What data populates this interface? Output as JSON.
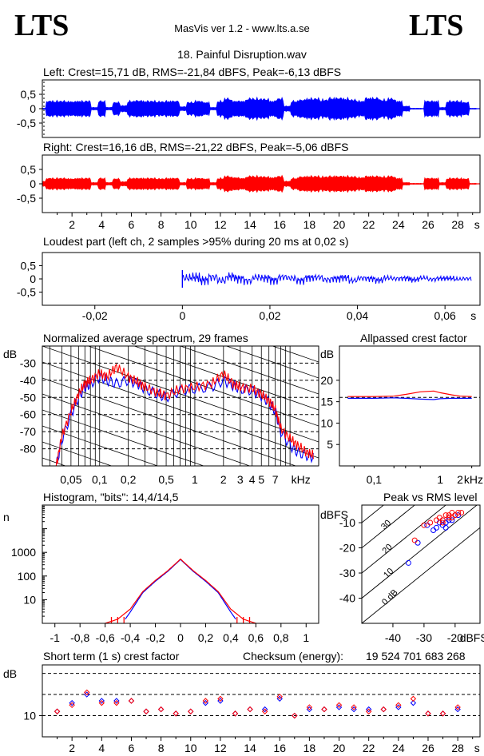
{
  "header": {
    "logo_left": "LTS",
    "logo_right": "LTS",
    "app_title": "MasVis ver 1.2 - www.lts.a.se",
    "file_title": "18. Painful Disruption.wav"
  },
  "colors": {
    "left": "#0000ff",
    "right": "#ff0000",
    "frame": "#000000"
  },
  "chart_data": [
    {
      "id": "left_waveform",
      "type": "area",
      "title": "Left: Crest=15,71 dB, RMS=-21,84 dBFS, Peak=-6,13 dBFS",
      "ylim": [
        -1,
        1
      ],
      "yticks": [
        "0,5",
        "0",
        "-0,5"
      ],
      "ytick_values": [
        0.5,
        0,
        -0.5
      ],
      "xlim": [
        0,
        29.5
      ],
      "x": [
        0,
        0.5,
        1,
        1.5,
        2,
        2.5,
        3,
        3.5,
        4,
        4.5,
        5,
        5.5,
        6,
        6.5,
        7,
        7.5,
        8,
        8.5,
        9,
        9.5,
        10,
        10.5,
        11,
        11.5,
        12,
        12.5,
        13,
        13.5,
        14,
        14.5,
        15,
        15.5,
        16,
        16.5,
        17,
        17.5,
        18,
        18.5,
        19,
        19.5,
        20,
        20.5,
        21,
        21.5,
        22,
        22.5,
        23,
        23.5,
        24,
        24.5,
        25,
        25.5,
        26,
        26.5,
        27,
        27.5,
        28,
        28.5,
        29,
        29.5
      ],
      "envelope": [
        0.02,
        0.3,
        0.3,
        0.3,
        0.28,
        0.3,
        0.3,
        0.05,
        0.3,
        0.05,
        0.25,
        0.12,
        0.3,
        0.32,
        0.3,
        0.3,
        0.28,
        0.3,
        0.3,
        0.08,
        0.25,
        0.3,
        0.25,
        0.05,
        0.3,
        0.4,
        0.3,
        0.3,
        0.4,
        0.4,
        0.38,
        0.3,
        0.4,
        0.1,
        0.3,
        0.35,
        0.4,
        0.4,
        0.35,
        0.42,
        0.42,
        0.4,
        0.35,
        0.3,
        0.42,
        0.42,
        0.35,
        0.4,
        0.3,
        0.1,
        0.02,
        0.02,
        0.3,
        0.3,
        0.05,
        0.3,
        0.3,
        0.25,
        0.02,
        0.01
      ]
    },
    {
      "id": "right_waveform",
      "type": "area",
      "title": "Right: Crest=16,16 dB, RMS=-21,22 dBFS, Peak=-5,06 dBFS",
      "ylim": [
        -1,
        1
      ],
      "yticks": [
        "0,5",
        "0",
        "-0,5"
      ],
      "ytick_values": [
        0.5,
        0,
        -0.5
      ],
      "xlim": [
        0,
        29.5
      ],
      "xticks": [
        "2",
        "4",
        "6",
        "8",
        "10",
        "12",
        "14",
        "16",
        "18",
        "20",
        "22",
        "24",
        "26",
        "28",
        "s"
      ],
      "xtick_values": [
        2,
        4,
        6,
        8,
        10,
        12,
        14,
        16,
        18,
        20,
        22,
        24,
        26,
        28,
        29.3
      ],
      "x": [
        0,
        0.5,
        1,
        1.5,
        2,
        2.5,
        3,
        3.5,
        4,
        4.5,
        5,
        5.5,
        6,
        6.5,
        7,
        7.5,
        8,
        8.5,
        9,
        9.5,
        10,
        10.5,
        11,
        11.5,
        12,
        12.5,
        13,
        13.5,
        14,
        14.5,
        15,
        15.5,
        16,
        16.5,
        17,
        17.5,
        18,
        18.5,
        19,
        19.5,
        20,
        20.5,
        21,
        21.5,
        22,
        22.5,
        23,
        23.5,
        24,
        24.5,
        25,
        25.5,
        26,
        26.5,
        27,
        27.5,
        28,
        28.5,
        29,
        29.5
      ],
      "envelope": [
        0.1,
        0.22,
        0.22,
        0.22,
        0.2,
        0.22,
        0.22,
        0.05,
        0.22,
        0.05,
        0.2,
        0.08,
        0.22,
        0.22,
        0.22,
        0.22,
        0.2,
        0.22,
        0.22,
        0.05,
        0.2,
        0.22,
        0.2,
        0.05,
        0.22,
        0.3,
        0.25,
        0.22,
        0.3,
        0.3,
        0.28,
        0.25,
        0.3,
        0.1,
        0.22,
        0.28,
        0.3,
        0.3,
        0.28,
        0.3,
        0.3,
        0.3,
        0.28,
        0.25,
        0.3,
        0.3,
        0.28,
        0.3,
        0.22,
        0.05,
        0.02,
        0.02,
        0.22,
        0.22,
        0.05,
        0.22,
        0.22,
        0.2,
        0.02,
        0.01
      ]
    },
    {
      "id": "loudest_part",
      "type": "line",
      "title": "Loudest part (left  ch, 2 samples >95% during 20 ms at 0,02 s)",
      "xlim": [
        -0.032,
        0.068
      ],
      "ylim": [
        -1,
        1
      ],
      "xticks": [
        "-0,02",
        "0",
        "0,02",
        "0,04",
        "0,06",
        "s"
      ],
      "xtick_values": [
        -0.02,
        0,
        0.02,
        0.04,
        0.06,
        0.0665
      ],
      "yticks": [
        "0,5",
        "0",
        "-0,5"
      ],
      "ytick_values": [
        0.5,
        0,
        -0.5
      ],
      "x": [
        0,
        0.002,
        0.004,
        0.006,
        0.008,
        0.01,
        0.012,
        0.014,
        0.016,
        0.018,
        0.02,
        0.022,
        0.024,
        0.026,
        0.028,
        0.03,
        0.032,
        0.034,
        0.036,
        0.038,
        0.04,
        0.042,
        0.044,
        0.046,
        0.048,
        0.05,
        0.052,
        0.054,
        0.056,
        0.058,
        0.06,
        0.062,
        0.064,
        0.066
      ],
      "y": [
        0.05,
        0.1,
        -0.08,
        0.12,
        -0.1,
        0.15,
        0.02,
        -0.12,
        0.1,
        0.05,
        -0.08,
        0.12,
        0.05,
        -0.1,
        0.08,
        0.1,
        -0.05,
        0.02,
        0.08,
        -0.1,
        0.05,
        0.02,
        -0.08,
        0.06,
        0.02,
        0.04,
        -0.05,
        0.06,
        -0.02,
        0.03,
        0.04,
        -0.02,
        0.02,
        0.01
      ]
    },
    {
      "id": "spectrum",
      "type": "line",
      "title": "Normalized average spectrum, 29 frames",
      "ylabel": "dB",
      "xlabel": "kHz",
      "xlim": [
        0.025,
        20
      ],
      "ylim": [
        -90,
        -20
      ],
      "yticks": [
        "-30",
        "-40",
        "-50",
        "-60",
        "-70",
        "-80"
      ],
      "ytick_values": [
        -30,
        -40,
        -50,
        -60,
        -70,
        -80
      ],
      "xticks": [
        "0,05",
        "0,1",
        "0,2",
        "0,5",
        "1",
        "2",
        "3",
        "4",
        "5",
        "7",
        "kHz"
      ],
      "xtick_values": [
        0.05,
        0.1,
        0.2,
        0.5,
        1,
        2,
        3,
        4,
        5,
        7,
        13
      ],
      "series": [
        {
          "color": "#0000ff",
          "x": [
            0.035,
            0.04,
            0.05,
            0.06,
            0.07,
            0.08,
            0.1,
            0.12,
            0.15,
            0.2,
            0.25,
            0.3,
            0.4,
            0.5,
            0.7,
            1,
            1.5,
            2,
            2.5,
            3,
            4,
            5,
            6,
            7,
            8,
            10,
            12,
            15,
            18
          ],
          "y": [
            -90,
            -75,
            -60,
            -50,
            -44,
            -42,
            -38,
            -40,
            -42,
            -40,
            -42,
            -45,
            -48,
            -50,
            -46,
            -45,
            -44,
            -40,
            -43,
            -45,
            -46,
            -49,
            -53,
            -58,
            -70,
            -78,
            -82,
            -84,
            -85
          ]
        },
        {
          "color": "#ff0000",
          "x": [
            0.035,
            0.04,
            0.05,
            0.06,
            0.07,
            0.08,
            0.1,
            0.12,
            0.15,
            0.2,
            0.25,
            0.3,
            0.4,
            0.5,
            0.7,
            1,
            1.5,
            2,
            2.5,
            3,
            4,
            5,
            6,
            7,
            8,
            10,
            12,
            15,
            18
          ],
          "y": [
            -90,
            -73,
            -58,
            -48,
            -42,
            -40,
            -36,
            -38,
            -32,
            -38,
            -41,
            -44,
            -47,
            -49,
            -45,
            -44,
            -42,
            -36,
            -42,
            -44,
            -45,
            -48,
            -52,
            -57,
            -68,
            -74,
            -78,
            -82,
            -84
          ]
        }
      ]
    },
    {
      "id": "allpassed_crest",
      "type": "line",
      "title": "Allpassed crest factor",
      "ylabel": "dB",
      "xlabel": "kHz",
      "xlim": [
        0.03,
        4
      ],
      "ylim": [
        0,
        28
      ],
      "yticks": [
        "20",
        "15",
        "10",
        "5"
      ],
      "ytick_values": [
        20,
        15,
        10,
        5
      ],
      "xticks": [
        "0,1",
        "1",
        "2",
        "kHz"
      ],
      "xtick_values": [
        0.1,
        1,
        2,
        3.2
      ],
      "series": [
        {
          "color": "#0000ff",
          "x": [
            0.04,
            0.1,
            0.2,
            0.3,
            0.5,
            0.8,
            1,
            1.5,
            2,
            3
          ],
          "y": [
            15.8,
            15.8,
            15.9,
            15.8,
            15.6,
            15.5,
            15.7,
            15.8,
            15.8,
            15.8
          ]
        },
        {
          "color": "#ff0000",
          "x": [
            0.04,
            0.1,
            0.2,
            0.3,
            0.5,
            0.8,
            1,
            1.5,
            2,
            3
          ],
          "y": [
            16.2,
            16.2,
            16.3,
            16.7,
            17.3,
            17.5,
            17.1,
            16.6,
            16.3,
            16.2
          ]
        }
      ]
    },
    {
      "id": "histogram",
      "type": "line",
      "title": "Histogram, \"bits\": 14,4/14,5",
      "ylabel": "n",
      "xlim": [
        -1.1,
        1.1
      ],
      "ylim_log": [
        1,
        100000
      ],
      "xticks": [
        "-1",
        "-0,8",
        "-0,6",
        "-0,4",
        "-0,2",
        "0",
        "0,2",
        "0,4",
        "0,6",
        "0,8",
        "1"
      ],
      "xtick_values": [
        -1,
        -0.8,
        -0.6,
        -0.4,
        -0.2,
        0,
        0.2,
        0.4,
        0.6,
        0.8,
        1
      ],
      "yticks": [
        "1000",
        "100",
        "10"
      ],
      "ytick_values": [
        1000,
        100,
        10
      ],
      "series": [
        {
          "color": "#0000ff",
          "x": [
            -0.44,
            -0.4,
            -0.3,
            -0.2,
            -0.1,
            0,
            0.1,
            0.2,
            0.3,
            0.4,
            0.44
          ],
          "y": [
            1.5,
            3,
            20,
            60,
            160,
            500,
            160,
            60,
            20,
            3,
            1.5
          ]
        },
        {
          "color": "#ff0000",
          "x": [
            -0.6,
            -0.5,
            -0.4,
            -0.3,
            -0.2,
            -0.1,
            0,
            0.1,
            0.2,
            0.3,
            0.4,
            0.5,
            0.6
          ],
          "y": [
            1,
            1.5,
            4,
            22,
            65,
            170,
            520,
            170,
            65,
            22,
            4,
            1.5,
            1
          ]
        }
      ]
    },
    {
      "id": "peak_vs_rms",
      "type": "scatter",
      "title": "Peak vs RMS level",
      "ylabel": "dBFS",
      "xlabel": "dBFS",
      "xlim": [
        -50,
        -12
      ],
      "ylim": [
        -50,
        -3
      ],
      "xticks": [
        "-40",
        "-30",
        "-20",
        "dBFS"
      ],
      "xtick_values": [
        -40,
        -30,
        -20,
        -14
      ],
      "yticks": [
        "-10",
        "-20",
        "-30",
        "-40"
      ],
      "ytick_values": [
        -10,
        -20,
        -30,
        -40
      ],
      "diagonal_labels": [
        "40",
        "30",
        "20",
        "10",
        "0 dB"
      ],
      "series": [
        {
          "color": "#0000ff",
          "x": [
            -35,
            -32,
            -29,
            -27,
            -26,
            -25,
            -24,
            -23,
            -22,
            -21,
            -20,
            -19,
            -24,
            -23,
            -22
          ],
          "y": [
            -26,
            -18,
            -11,
            -13,
            -12,
            -10,
            -9,
            -10,
            -8,
            -9,
            -7,
            -7,
            -11,
            -12,
            -9
          ]
        },
        {
          "color": "#ff0000",
          "x": [
            -33,
            -30,
            -28,
            -26,
            -25,
            -24,
            -23,
            -22,
            -21,
            -20,
            -19,
            -18,
            -24,
            -22,
            -21
          ],
          "y": [
            -17,
            -11,
            -10,
            -9,
            -8,
            -9,
            -7,
            -8,
            -6,
            -7,
            -6,
            -6,
            -10,
            -7,
            -8
          ]
        }
      ]
    },
    {
      "id": "short_term_crest",
      "type": "scatter",
      "title": "Short term (1 s) crest factor",
      "checksum_label": "Checksum (energy):",
      "checksum_value": "19 524 701 683 268",
      "ylabel": "dB",
      "xlim": [
        0,
        29.5
      ],
      "ylim": [
        5,
        22
      ],
      "yticks": [
        "10"
      ],
      "ytick_values": [
        10
      ],
      "xticks": [
        "2",
        "4",
        "6",
        "8",
        "10",
        "12",
        "14",
        "16",
        "18",
        "20",
        "22",
        "24",
        "26",
        "28",
        "s"
      ],
      "xtick_values": [
        2,
        4,
        6,
        8,
        10,
        12,
        14,
        16,
        18,
        20,
        22,
        24,
        26,
        28,
        29.3
      ],
      "series": [
        {
          "color": "#0000ff",
          "x": [
            1,
            2,
            3,
            4,
            5,
            6,
            7,
            8,
            9,
            10,
            11,
            12,
            13,
            14,
            15,
            16,
            17,
            18,
            19,
            20,
            21,
            22,
            23,
            24,
            25,
            26,
            27,
            28
          ],
          "y": [
            11,
            13,
            15,
            13.5,
            13.5,
            13.5,
            11,
            11.5,
            10.5,
            11,
            13,
            13.5,
            10.5,
            11.5,
            11.5,
            14,
            10,
            11.5,
            11.5,
            12,
            11.5,
            11.5,
            11.5,
            12,
            13,
            10.5,
            10.5,
            11.5
          ]
        },
        {
          "color": "#ff0000",
          "x": [
            1,
            2,
            3,
            4,
            5,
            6,
            7,
            8,
            9,
            10,
            11,
            12,
            13,
            14,
            15,
            16,
            17,
            18,
            19,
            20,
            21,
            22,
            23,
            24,
            25,
            26,
            27,
            28
          ],
          "y": [
            11,
            12.5,
            15.5,
            13,
            13,
            13.5,
            11,
            11.5,
            10.5,
            11,
            13.5,
            14,
            10.5,
            11.5,
            11,
            14.5,
            10,
            12,
            11.5,
            12.5,
            12,
            11,
            11.5,
            12.5,
            14,
            10.5,
            10.5,
            12
          ]
        }
      ]
    }
  ]
}
